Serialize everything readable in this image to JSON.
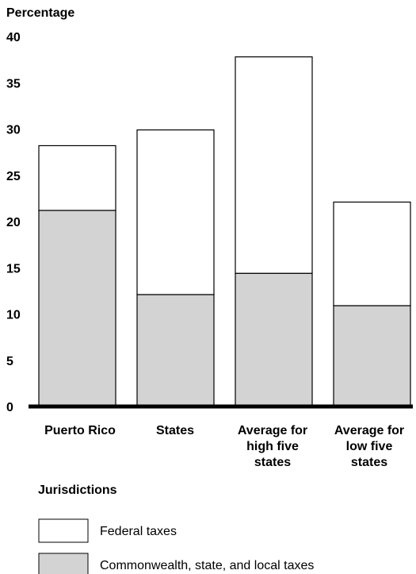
{
  "chart_data": {
    "type": "bar",
    "stacked": true,
    "ylabel": "Percentage",
    "xlabel": "Jurisdictions",
    "ylim": [
      0,
      40
    ],
    "yticks": [
      0,
      5,
      10,
      15,
      20,
      25,
      30,
      35,
      40
    ],
    "categories": [
      [
        "Puerto Rico"
      ],
      [
        "States"
      ],
      [
        "Average for",
        "high five",
        "states"
      ],
      [
        "Average for",
        "low five",
        "states"
      ]
    ],
    "series": [
      {
        "name": "Commonwealth, state, and local taxes",
        "color": "#d3d3d3",
        "values": [
          21.2,
          12.1,
          14.4,
          10.9
        ]
      },
      {
        "name": "Federal taxes",
        "color": "#ffffff",
        "values": [
          7.0,
          17.8,
          23.4,
          11.2
        ]
      }
    ],
    "legend_order": [
      "Federal taxes",
      "Commonwealth, state, and local taxes"
    ],
    "legend_position": "bottom-left",
    "grid": false
  }
}
